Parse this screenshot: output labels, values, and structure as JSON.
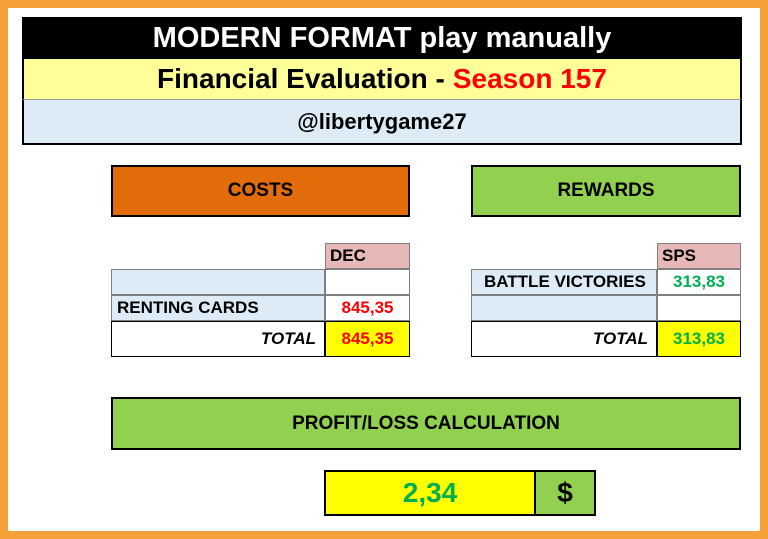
{
  "header": {
    "title": "MODERN FORMAT play manually",
    "subtitle_prefix": "Financial Evaluation -",
    "subtitle_season": "Season 157",
    "user": "@libertygame27"
  },
  "costs": {
    "title": "COSTS",
    "column": "DEC",
    "rows": [
      {
        "label": "",
        "value": ""
      },
      {
        "label": "RENTING CARDS",
        "value": "845,35"
      }
    ],
    "total_label": "TOTAL",
    "total_value": "845,35"
  },
  "rewards": {
    "title": "REWARDS",
    "column": "SPS",
    "rows": [
      {
        "label": "BATTLE VICTORIES",
        "value": "313,83"
      },
      {
        "label": "",
        "value": ""
      }
    ],
    "total_label": "TOTAL",
    "total_value": "313,83"
  },
  "profit": {
    "title": "PROFIT/LOSS CALCULATION",
    "value": "2,34",
    "currency": "$"
  },
  "colors": {
    "frame": "#f4a13a",
    "costs_header": "#e26b0a",
    "rewards_header": "#92d050",
    "highlight": "#ffff00",
    "negative": "#ff0000",
    "positive": "#00b050"
  }
}
